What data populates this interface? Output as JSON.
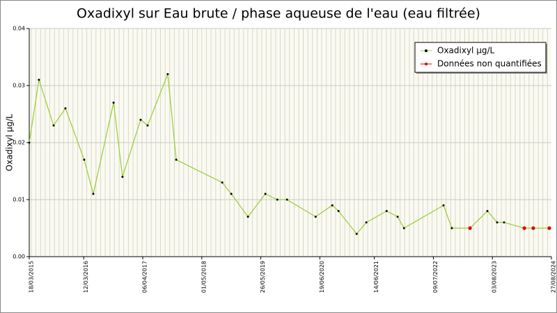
{
  "chart_data": {
    "type": "line",
    "title": "Oxadixyl sur Eau brute / phase aqueuse de l'eau (eau filtrée)",
    "y_label": "Oxadixyl µg/L",
    "xlim": [
      "18/03/2015",
      "27/08/2024"
    ],
    "xticks": [
      "18/03/2015",
      "12/03/2016",
      "06/04/2017",
      "01/05/2018",
      "26/05/2019",
      "19/06/2020",
      "14/06/2021",
      "09/07/2022",
      "03/08/2023",
      "27/08/2024"
    ],
    "ylim": [
      0,
      0.04
    ],
    "yticks": [
      {
        "value": 0,
        "label": "0.00"
      },
      {
        "value": 0.01,
        "label": "0.01"
      },
      {
        "value": 0.02,
        "label": "0.02"
      },
      {
        "value": 0.03,
        "label": "0.03"
      },
      {
        "value": 0.04,
        "label": "0.04"
      }
    ],
    "grid": true,
    "legend": "top-right",
    "series": [
      {
        "name": "Oxadixyl µg/L",
        "color": "#99cc33",
        "marker_color": "#000000",
        "x": [
          "18/03/2015",
          "21/05/2015",
          "26/08/2015",
          "12/11/2015",
          "15/03/2016",
          "14/05/2016",
          "25/09/2016",
          "23/11/2016",
          "23/03/2017",
          "08/05/2017",
          "18/09/2017",
          "13/11/2017",
          "13/09/2018",
          "12/11/2018",
          "02/03/2019",
          "25/06/2019",
          "12/09/2019",
          "15/11/2019",
          "22/05/2020",
          "09/09/2020",
          "20/10/2020",
          "17/02/2021",
          "22/04/2021",
          "03/09/2021",
          "15/11/2021",
          "27/12/2021",
          "14/09/2022",
          "08/11/2022",
          "08/03/2023",
          "01/07/2023",
          "03/09/2023",
          "19/10/2023",
          "01/03/2024",
          "29/04/2024",
          "13/08/2024"
        ],
        "values": [
          0.02,
          0.031,
          0.023,
          0.026,
          0.017,
          0.011,
          0.027,
          0.014,
          0.024,
          0.023,
          0.032,
          0.017,
          0.013,
          0.011,
          0.007,
          0.011,
          0.01,
          0.01,
          0.007,
          0.009,
          0.008,
          0.004,
          0.006,
          0.008,
          0.007,
          0.005,
          0.009,
          0.005,
          0.005,
          0.008,
          0.006,
          0.006,
          0.005,
          0.005,
          0.005
        ]
      },
      {
        "name": "Données non quantifiées",
        "color": "#dd0000",
        "x": [
          "08/03/2023",
          "01/03/2024",
          "29/04/2024",
          "13/08/2024"
        ],
        "values": [
          0.005,
          0.005,
          0.005,
          0.005
        ]
      }
    ]
  }
}
